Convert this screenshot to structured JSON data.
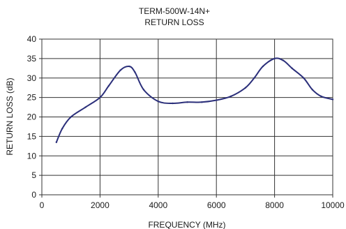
{
  "chart_data": {
    "type": "line",
    "title": "TERM-500W-14N+",
    "subtitle": "RETURN LOSS",
    "xlabel": "FREQUENCY (MHz)",
    "ylabel": "RETURN LOSS (dB)",
    "xlim": [
      0,
      10000
    ],
    "ylim": [
      0,
      40
    ],
    "x_ticks": [
      "0",
      "2000",
      "4000",
      "6000",
      "8000",
      "10000"
    ],
    "y_ticks": [
      "0",
      "5",
      "10",
      "15",
      "20",
      "25",
      "30",
      "35",
      "40"
    ],
    "grid": true,
    "legend": "none",
    "series": [
      {
        "color": "#2b2f7a",
        "x": [
          500,
          700,
          1000,
          1500,
          2000,
          2300,
          2700,
          3000,
          3200,
          3500,
          4000,
          4500,
          5000,
          5500,
          6000,
          6500,
          7000,
          7300,
          7600,
          8000,
          8300,
          8600,
          9000,
          9300,
          9600,
          10000
        ],
        "y": [
          13.5,
          17.0,
          20.0,
          22.5,
          25.0,
          28.0,
          32.0,
          33.0,
          31.5,
          27.0,
          24.0,
          23.5,
          23.8,
          23.8,
          24.3,
          25.3,
          27.5,
          30.0,
          33.0,
          35.0,
          34.5,
          32.5,
          30.0,
          27.0,
          25.3,
          24.5
        ]
      }
    ]
  }
}
